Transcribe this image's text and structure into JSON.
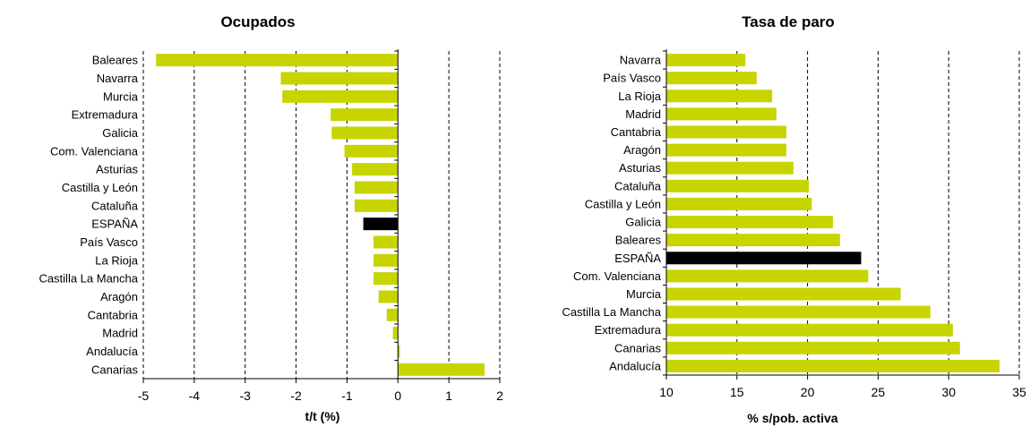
{
  "chart_data": [
    {
      "type": "bar",
      "orientation": "horizontal",
      "title": "Ocupados",
      "xlabel": "t/t (%)",
      "xlim": [
        -5,
        2
      ],
      "xticks": [
        "-5",
        "-4",
        "-3",
        "-2",
        "-1",
        "0",
        "1",
        "2"
      ],
      "grid": "vertical dashed",
      "categories": [
        "Baleares",
        "Navarra",
        "Murcia",
        "Extremadura",
        "Galicia",
        "Com. Valenciana",
        "Asturias",
        "Castilla y León",
        "Cataluña",
        "ESPAÑA",
        "País Vasco",
        "La Rioja",
        "Castilla La Mancha",
        "Aragón",
        "Cantabria",
        "Madrid",
        "Andalucía",
        "Canarias"
      ],
      "values": [
        -4.75,
        -2.3,
        -2.27,
        -1.32,
        -1.3,
        -1.05,
        -0.9,
        -0.85,
        -0.85,
        -0.68,
        -0.48,
        -0.48,
        -0.48,
        -0.38,
        -0.22,
        -0.1,
        0.04,
        1.7
      ],
      "highlight": "ESPAÑA",
      "bar_color": "#c8d400",
      "highlight_color": "#000000"
    },
    {
      "type": "bar",
      "orientation": "horizontal",
      "title": "Tasa de paro",
      "xlabel": "% s/pob. activa",
      "xlim": [
        10,
        35
      ],
      "xticks": [
        "10",
        "15",
        "20",
        "25",
        "30",
        "35"
      ],
      "grid": "vertical dashed",
      "categories": [
        "Navarra",
        "País Vasco",
        "La Rioja",
        "Madrid",
        "Cantabria",
        "Aragón",
        "Asturias",
        "Cataluña",
        "Castilla y León",
        "Galicia",
        "Baleares",
        "ESPAÑA",
        "Com. Valenciana",
        "Murcia",
        "Castilla La Mancha",
        "Extremadura",
        "Canarias",
        "Andalucía"
      ],
      "values": [
        15.6,
        16.4,
        17.5,
        17.8,
        18.5,
        18.5,
        19.0,
        20.1,
        20.3,
        21.8,
        22.3,
        23.8,
        24.3,
        26.6,
        28.7,
        30.3,
        30.8,
        33.6
      ],
      "highlight": "ESPAÑA",
      "bar_color": "#c8d400",
      "highlight_color": "#000000"
    }
  ]
}
